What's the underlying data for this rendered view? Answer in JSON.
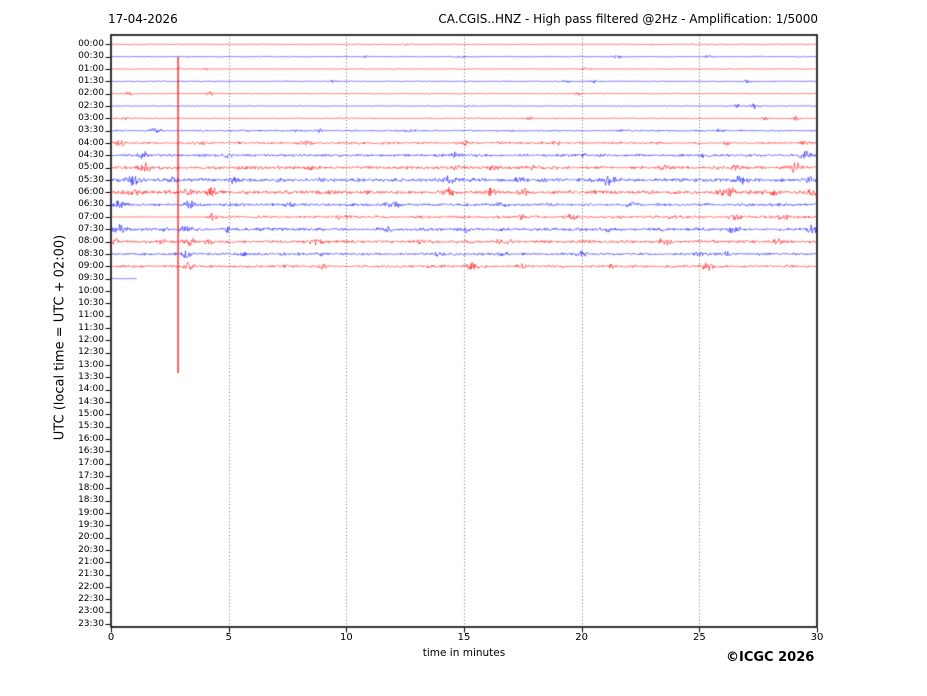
{
  "header": {
    "date": "17-04-2026",
    "title": "CA.CGIS..HNZ - High pass filtered @2Hz - Amplification: 1/5000"
  },
  "footer": {
    "copyright": "©ICGC 2026"
  },
  "chart_data": {
    "type": "line",
    "subtype": "helicorder_dayplot",
    "station": "CA.CGIS..HNZ",
    "filter": "High pass filtered @2Hz",
    "amplification": "1/5000",
    "date": "17-04-2026",
    "xlabel": "time in minutes",
    "ylabel": "UTC (local time = UTC + 02:00)",
    "xlim": [
      0,
      30
    ],
    "x_ticks": [
      0,
      5,
      10,
      15,
      20,
      25,
      30
    ],
    "grid_minutes": [
      5,
      10,
      15,
      20,
      25
    ],
    "minutes_per_row": 30,
    "colors": {
      "trace_even": "#ff0000",
      "trace_odd": "#0000ff",
      "grid": "#777777",
      "frame": "#000000"
    },
    "burst_format": "[minute, peak_amplitude_px, width_minutes]",
    "spike": {
      "minute": 2.85,
      "color": "#ff0000",
      "top_row_label": "00:30",
      "bottom_row_label": "13:30",
      "note": "large clipped spike crossing many rows"
    },
    "rows": [
      {
        "label": "00:00",
        "color": "#ff0000",
        "base": 0.35,
        "bursts": [
          [
            12.6,
            0.9,
            0.12
          ],
          [
            23.1,
            0.8,
            0.1
          ],
          [
            24.6,
            0.8,
            0.1
          ]
        ]
      },
      {
        "label": "00:30",
        "color": "#0000ff",
        "base": 0.4,
        "bursts": [
          [
            10.8,
            1.0,
            0.12
          ],
          [
            14.9,
            1.3,
            0.1
          ],
          [
            21.5,
            1.3,
            0.14
          ],
          [
            25.4,
            0.9,
            0.12
          ]
        ]
      },
      {
        "label": "01:00",
        "color": "#ff0000",
        "base": 0.35,
        "bursts": [
          [
            2.85,
            1.2,
            0.07
          ],
          [
            4.0,
            0.8,
            0.1
          ],
          [
            20.2,
            1.5,
            0.14
          ]
        ]
      },
      {
        "label": "01:30",
        "color": "#0000ff",
        "base": 0.45,
        "bursts": [
          [
            9.4,
            1.2,
            0.12
          ],
          [
            19.3,
            1.1,
            0.14
          ],
          [
            20.5,
            1.0,
            0.1
          ],
          [
            27.0,
            1.0,
            0.12
          ]
        ]
      },
      {
        "label": "02:00",
        "color": "#ff0000",
        "base": 0.4,
        "bursts": [
          [
            0.7,
            1.3,
            0.12
          ],
          [
            4.2,
            1.4,
            0.12
          ],
          [
            19.9,
            1.0,
            0.14
          ]
        ]
      },
      {
        "label": "02:30",
        "color": "#0000ff",
        "base": 0.3,
        "bursts": [
          [
            15.2,
            0.8,
            0.1
          ],
          [
            26.6,
            1.2,
            0.12
          ],
          [
            27.3,
            2.1,
            0.16
          ]
        ]
      },
      {
        "label": "03:00",
        "color": "#ff0000",
        "base": 0.45,
        "bursts": [
          [
            0.6,
            0.9,
            0.1
          ],
          [
            17.8,
            1.0,
            0.12
          ],
          [
            27.8,
            1.0,
            0.1
          ],
          [
            29.1,
            1.1,
            0.12
          ]
        ]
      },
      {
        "label": "03:30",
        "color": "#0000ff",
        "base": 0.6,
        "bursts": [
          [
            1.9,
            1.7,
            0.15
          ],
          [
            7.9,
            1.3,
            0.15
          ],
          [
            8.9,
            1.1,
            0.12
          ],
          [
            12.7,
            1.2,
            0.14
          ],
          [
            25.9,
            1.5,
            0.14
          ]
        ]
      },
      {
        "label": "04:00",
        "color": "#ff0000",
        "base": 0.8,
        "bursts": [
          [
            0.4,
            1.5,
            0.2
          ],
          [
            3.9,
            1.3,
            0.15
          ],
          [
            8.3,
            1.5,
            0.2
          ],
          [
            15.0,
            1.4,
            0.15
          ],
          [
            18.9,
            1.5,
            0.15
          ],
          [
            26.2,
            1.5,
            0.15
          ],
          [
            29.5,
            1.7,
            0.2
          ]
        ]
      },
      {
        "label": "04:30",
        "color": "#0000ff",
        "base": 0.9,
        "bursts": [
          [
            1.35,
            2.1,
            0.15
          ],
          [
            5.0,
            1.7,
            0.15
          ],
          [
            14.6,
            2.0,
            0.18
          ],
          [
            20.0,
            1.5,
            0.15
          ],
          [
            25.2,
            1.6,
            0.15
          ],
          [
            29.6,
            2.8,
            0.22
          ]
        ]
      },
      {
        "label": "05:00",
        "color": "#ff0000",
        "base": 1.1,
        "bursts": [
          [
            1.5,
            2.6,
            0.18
          ],
          [
            8.5,
            1.5,
            0.2
          ],
          [
            14.8,
            1.7,
            0.18
          ],
          [
            16.3,
            2.1,
            0.18
          ],
          [
            17.9,
            1.5,
            0.15
          ],
          [
            23.6,
            1.7,
            0.18
          ],
          [
            26.5,
            1.5,
            0.18
          ],
          [
            29.1,
            2.8,
            0.22
          ]
        ]
      },
      {
        "label": "05:30",
        "color": "#0000ff",
        "base": 1.3,
        "bursts": [
          [
            0.95,
            3.0,
            0.2
          ],
          [
            2.7,
            2.0,
            0.15
          ],
          [
            5.2,
            1.5,
            0.15
          ],
          [
            14.4,
            2.5,
            0.18
          ],
          [
            17.4,
            1.7,
            0.15
          ],
          [
            21.1,
            3.0,
            0.2
          ],
          [
            26.7,
            1.9,
            0.18
          ],
          [
            29.7,
            2.1,
            0.18
          ]
        ]
      },
      {
        "label": "06:00",
        "color": "#ff0000",
        "base": 1.3,
        "bursts": [
          [
            0.8,
            1.9,
            0.3
          ],
          [
            3.3,
            1.9,
            0.2
          ],
          [
            4.25,
            3.2,
            0.16
          ],
          [
            14.3,
            2.1,
            0.18
          ],
          [
            16.2,
            1.9,
            0.18
          ],
          [
            17.5,
            1.7,
            0.18
          ],
          [
            26.2,
            3.2,
            0.22
          ],
          [
            28.2,
            2.1,
            0.18
          ],
          [
            29.9,
            2.8,
            0.14
          ]
        ]
      },
      {
        "label": "06:30",
        "color": "#0000ff",
        "base": 1.0,
        "bursts": [
          [
            0.2,
            2.4,
            0.2
          ],
          [
            3.35,
            2.1,
            0.16
          ],
          [
            7.6,
            1.4,
            0.2
          ],
          [
            12.0,
            1.5,
            0.2
          ],
          [
            16.5,
            1.3,
            0.2
          ],
          [
            22.0,
            1.7,
            0.18
          ]
        ]
      },
      {
        "label": "07:00",
        "color": "#ff0000",
        "base": 0.9,
        "flat_until": 4.0,
        "flat_amp": 0.22,
        "bursts": [
          [
            4.3,
            2.1,
            0.13
          ],
          [
            9.8,
            1.3,
            0.2
          ],
          [
            17.4,
            2.2,
            0.18
          ],
          [
            19.5,
            1.7,
            0.18
          ],
          [
            24.0,
            1.4,
            0.18
          ],
          [
            26.5,
            1.7,
            0.18
          ],
          [
            28.6,
            1.7,
            0.18
          ]
        ]
      },
      {
        "label": "07:30",
        "color": "#0000ff",
        "base": 1.1,
        "bursts": [
          [
            0.4,
            2.4,
            0.16
          ],
          [
            2.3,
            1.7,
            0.14
          ],
          [
            3.2,
            2.6,
            0.16
          ],
          [
            5.0,
            1.7,
            0.14
          ],
          [
            11.6,
            1.9,
            0.18
          ],
          [
            15.0,
            1.7,
            0.18
          ],
          [
            21.0,
            1.7,
            0.18
          ],
          [
            26.4,
            1.9,
            0.18
          ],
          [
            29.8,
            2.2,
            0.14
          ]
        ]
      },
      {
        "label": "08:00",
        "color": "#ff0000",
        "base": 1.1,
        "bursts": [
          [
            0.1,
            2.6,
            0.14
          ],
          [
            2.1,
            1.5,
            0.14
          ],
          [
            3.3,
            2.4,
            0.16
          ],
          [
            4.2,
            1.7,
            0.14
          ],
          [
            8.8,
            1.7,
            0.18
          ],
          [
            13.0,
            1.5,
            0.18
          ],
          [
            16.6,
            1.7,
            0.18
          ],
          [
            23.5,
            2.4,
            0.18
          ],
          [
            28.3,
            1.7,
            0.18
          ]
        ]
      },
      {
        "label": "08:30",
        "color": "#0000ff",
        "base": 0.9,
        "bursts": [
          [
            3.2,
            2.6,
            0.16
          ],
          [
            5.5,
            1.4,
            0.18
          ],
          [
            9.0,
            1.3,
            0.18
          ],
          [
            13.8,
            1.5,
            0.18
          ],
          [
            16.7,
            1.5,
            0.18
          ],
          [
            20.0,
            1.3,
            0.18
          ],
          [
            25.0,
            1.4,
            0.16
          ],
          [
            26.1,
            1.7,
            0.14
          ]
        ]
      },
      {
        "label": "09:00",
        "color": "#ff0000",
        "base": 0.9,
        "bursts": [
          [
            3.3,
            2.8,
            0.16
          ],
          [
            9.0,
            1.3,
            0.18
          ],
          [
            15.3,
            2.4,
            0.18
          ],
          [
            17.5,
            1.4,
            0.18
          ],
          [
            21.3,
            1.7,
            0.18
          ],
          [
            25.3,
            2.6,
            0.18
          ]
        ]
      },
      {
        "label": "09:30",
        "color": "#0000ff",
        "base": 0.28,
        "end_min": 1.1,
        "bursts": []
      },
      {
        "label": "10:00"
      },
      {
        "label": "10:30"
      },
      {
        "label": "11:00"
      },
      {
        "label": "11:30"
      },
      {
        "label": "12:00"
      },
      {
        "label": "12:30"
      },
      {
        "label": "13:00"
      },
      {
        "label": "13:30"
      },
      {
        "label": "14:00"
      },
      {
        "label": "14:30"
      },
      {
        "label": "15:00"
      },
      {
        "label": "15:30"
      },
      {
        "label": "16:00"
      },
      {
        "label": "16:30"
      },
      {
        "label": "17:00"
      },
      {
        "label": "17:30"
      },
      {
        "label": "18:00"
      },
      {
        "label": "18:30"
      },
      {
        "label": "19:00"
      },
      {
        "label": "19:30"
      },
      {
        "label": "20:00"
      },
      {
        "label": "20:30"
      },
      {
        "label": "21:00"
      },
      {
        "label": "21:30"
      },
      {
        "label": "22:00"
      },
      {
        "label": "22:30"
      },
      {
        "label": "23:00"
      },
      {
        "label": "23:30"
      }
    ]
  }
}
